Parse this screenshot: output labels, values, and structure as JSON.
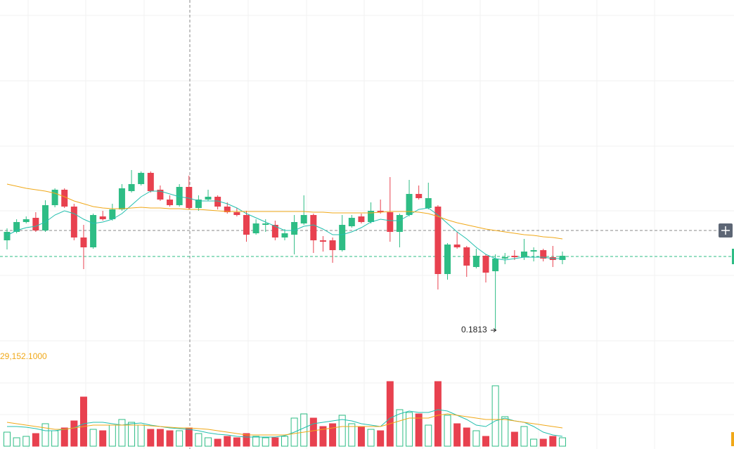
{
  "chart_data": {
    "type": "candlestick",
    "up_color": "#2ebd85",
    "down_color": "#e8414f",
    "ma_short_color": "#23bfae",
    "ma_long_color": "#f0a818",
    "ylim": [
      0.1782,
      0.2282
    ],
    "volume_ylim": [
      0,
      100000
    ],
    "open": [
      0.194,
      0.1952,
      0.1966,
      0.1972,
      0.1954,
      0.199,
      0.2012,
      0.1988,
      0.1944,
      0.193,
      0.1974,
      0.197,
      0.1984,
      0.201,
      0.202,
      0.2036,
      0.2012,
      0.1998,
      0.199,
      0.2016,
      0.1986,
      0.1998,
      0.2002,
      0.1988,
      0.198,
      0.1976,
      0.195,
      0.1962,
      0.1962,
      0.1944,
      0.1948,
      0.1964,
      0.1976,
      0.194,
      0.194,
      0.1926,
      0.196,
      0.1974,
      0.1966,
      0.1982,
      0.198,
      0.1952,
      0.1976,
      0.2006,
      0.1986,
      0.1988,
      0.1892,
      0.1934,
      0.193,
      0.1902,
      0.1918,
      0.1896,
      0.1914,
      0.1918,
      0.1916,
      0.1924,
      0.1926,
      0.1916,
      0.1912
    ],
    "high": [
      0.1957,
      0.197,
      0.1974,
      0.198,
      0.1997,
      0.2014,
      0.2014,
      0.1992,
      0.1962,
      0.1978,
      0.1982,
      0.1992,
      0.202,
      0.204,
      0.2038,
      0.2038,
      0.2018,
      0.2004,
      0.202,
      0.2032,
      0.2004,
      0.2012,
      0.2004,
      0.1994,
      0.1986,
      0.1982,
      0.197,
      0.197,
      0.1968,
      0.1956,
      0.1976,
      0.2004,
      0.1978,
      0.1946,
      0.1944,
      0.1976,
      0.1976,
      0.1978,
      0.1994,
      0.1998,
      0.203,
      0.1978,
      0.2026,
      0.2018,
      0.2022,
      0.199,
      0.1936,
      0.1952,
      0.1932,
      0.1928,
      0.192,
      0.192,
      0.1922,
      0.1926,
      0.1942,
      0.193,
      0.1928,
      0.1932,
      0.1924
    ],
    "low": [
      0.1927,
      0.195,
      0.1964,
      0.1952,
      0.1952,
      0.1987,
      0.1986,
      0.194,
      0.1899,
      0.1928,
      0.1968,
      0.1968,
      0.1982,
      0.2008,
      0.2018,
      0.2008,
      0.1996,
      0.1988,
      0.1988,
      0.1984,
      0.1982,
      0.1996,
      0.1984,
      0.1978,
      0.1974,
      0.1938,
      0.1948,
      0.1952,
      0.194,
      0.194,
      0.192,
      0.1962,
      0.1922,
      0.1924,
      0.1908,
      0.1924,
      0.1958,
      0.1964,
      0.1964,
      0.1978,
      0.1938,
      0.193,
      0.1974,
      0.1998,
      0.1984,
      0.187,
      0.1884,
      0.1928,
      0.1888,
      0.19,
      0.188,
      0.1813,
      0.1906,
      0.1912,
      0.1912,
      0.191,
      0.191,
      0.1902,
      0.1906
    ],
    "close": [
      0.1952,
      0.1966,
      0.197,
      0.1954,
      0.199,
      0.2012,
      0.1988,
      0.1944,
      0.193,
      0.1976,
      0.197,
      0.1984,
      0.2014,
      0.202,
      0.2036,
      0.201,
      0.1998,
      0.199,
      0.2016,
      0.1986,
      0.1998,
      0.2002,
      0.1988,
      0.198,
      0.1976,
      0.1948,
      0.1964,
      0.1964,
      0.1944,
      0.195,
      0.1966,
      0.1976,
      0.194,
      0.1938,
      0.1926,
      0.1962,
      0.1972,
      0.1966,
      0.1982,
      0.198,
      0.1952,
      0.1976,
      0.2006,
      0.2,
      0.2,
      0.1892,
      0.1934,
      0.193,
      0.1904,
      0.1918,
      0.1894,
      0.1914,
      0.1916,
      0.1916,
      0.1924,
      0.1926,
      0.1914,
      0.1912,
      0.1918
    ],
    "ma_short": [
      0.1947,
      0.1954,
      0.1958,
      0.196,
      0.1966,
      0.1976,
      0.1982,
      0.1978,
      0.197,
      0.1964,
      0.1966,
      0.197,
      0.1978,
      0.199,
      0.2002,
      0.201,
      0.201,
      0.2006,
      0.2002,
      0.2,
      0.1996,
      0.1996,
      0.1996,
      0.1992,
      0.1986,
      0.1978,
      0.1972,
      0.1966,
      0.196,
      0.1954,
      0.1954,
      0.196,
      0.1962,
      0.1956,
      0.1948,
      0.1948,
      0.1952,
      0.1958,
      0.1966,
      0.197,
      0.1968,
      0.1968,
      0.1976,
      0.1984,
      0.1986,
      0.1976,
      0.1964,
      0.1952,
      0.1942,
      0.193,
      0.192,
      0.1914,
      0.1912,
      0.1914,
      0.1916,
      0.1916,
      0.1916,
      0.1914,
      0.1914
    ],
    "ma_long": [
      0.202,
      0.2017,
      0.2014,
      0.2012,
      0.201,
      0.2007,
      0.2002,
      0.1996,
      0.1992,
      0.1988,
      0.1986,
      0.1985,
      0.1985,
      0.1986,
      0.1987,
      0.1986,
      0.1986,
      0.1985,
      0.1985,
      0.1984,
      0.1984,
      0.1983,
      0.1982,
      0.1981,
      0.1981,
      0.1981,
      0.1981,
      0.1981,
      0.1981,
      0.1981,
      0.1981,
      0.1981,
      0.198,
      0.198,
      0.1979,
      0.1979,
      0.1979,
      0.1979,
      0.1979,
      0.198,
      0.1981,
      0.1981,
      0.1981,
      0.198,
      0.1978,
      0.1974,
      0.1969,
      0.1965,
      0.1962,
      0.1959,
      0.1956,
      0.1954,
      0.1952,
      0.195,
      0.1948,
      0.1947,
      0.1945,
      0.1944,
      0.1942
    ],
    "volume": [
      20000,
      12000,
      14000,
      18000,
      32000,
      22000,
      26000,
      36000,
      70000,
      24000,
      22000,
      30000,
      38000,
      34000,
      30000,
      24000,
      24000,
      22000,
      22000,
      26000,
      18000,
      12000,
      10000,
      14000,
      12000,
      18000,
      14000,
      12000,
      12000,
      14000,
      40000,
      46000,
      40000,
      28000,
      32000,
      44000,
      32000,
      28000,
      24000,
      22000,
      92000,
      52000,
      48000,
      46000,
      30000,
      92000,
      44000,
      32000,
      26000,
      22000,
      14000,
      86000,
      42000,
      20000,
      28000,
      10000,
      10000,
      14000,
      12000
    ],
    "volume_ma_short": [
      28000,
      28000,
      27000,
      25000,
      22000,
      22000,
      24000,
      26000,
      32000,
      34000,
      34000,
      32000,
      30000,
      32000,
      33000,
      30000,
      28000,
      26000,
      25000,
      24000,
      22000,
      19000,
      17000,
      16000,
      14000,
      13000,
      13000,
      13000,
      13000,
      15000,
      20000,
      26000,
      32000,
      34000,
      36000,
      38000,
      36000,
      32000,
      30000,
      28000,
      40000,
      46000,
      50000,
      48000,
      48000,
      52000,
      50000,
      44000,
      38000,
      30000,
      28000,
      36000,
      40000,
      36000,
      34000,
      28000,
      20000,
      16000,
      14000
    ],
    "volume_ma_long": [
      34000,
      32000,
      30000,
      28000,
      26000,
      24000,
      24000,
      26000,
      28000,
      30000,
      30000,
      30000,
      30000,
      30000,
      30000,
      29000,
      28000,
      27000,
      26000,
      26000,
      25000,
      24000,
      22000,
      20000,
      18000,
      16000,
      16000,
      16000,
      16000,
      16000,
      18000,
      20000,
      22000,
      24000,
      26000,
      28000,
      28000,
      28000,
      28000,
      28000,
      32000,
      36000,
      40000,
      40000,
      40000,
      44000,
      46000,
      44000,
      42000,
      40000,
      38000,
      38000,
      38000,
      36000,
      34000,
      32000,
      30000,
      28000,
      26000
    ],
    "volume_ma_label": "29,152.1000"
  }
}
